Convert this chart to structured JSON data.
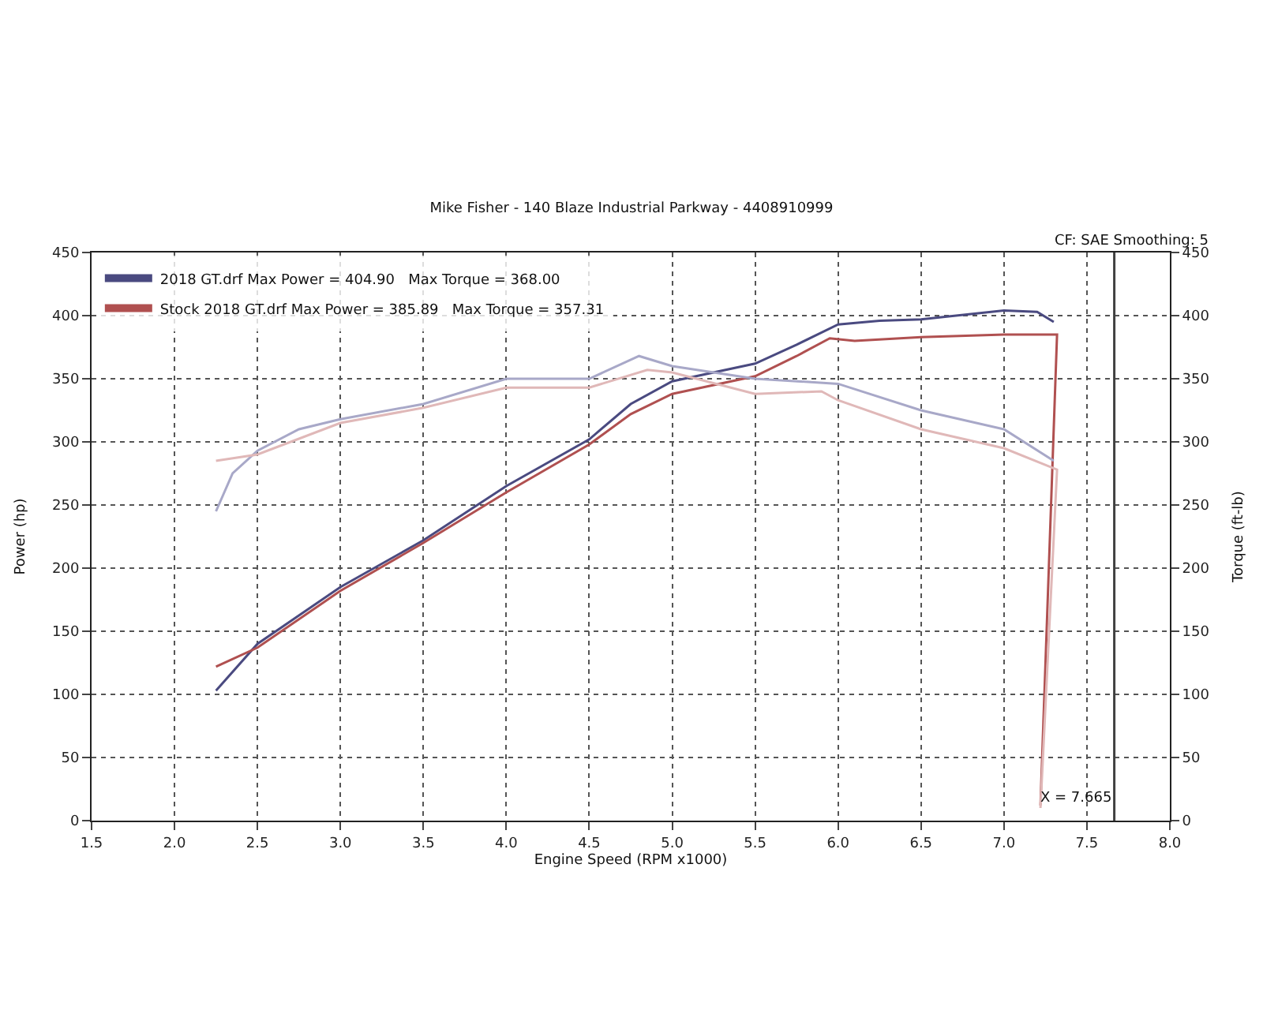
{
  "chart_data": {
    "type": "line",
    "title": "Mike Fisher - 140 Blaze Industrial Parkway - 4408910999",
    "annotations": [
      "CF: SAE Smoothing: 5"
    ],
    "xlabel": "Engine Speed (RPM x1000)",
    "ylabel": "Power (hp)",
    "y2label": "Torque (ft-lb)",
    "xlim": [
      1.5,
      8.0
    ],
    "xticks": [
      1.5,
      {
        "value": 2,
        "label": "2.0"
      },
      2.5,
      {
        "value": 3,
        "label": "3.0"
      },
      3.5,
      {
        "value": 4,
        "label": "4.0"
      },
      4.5,
      {
        "value": 5,
        "label": "5.0"
      },
      5.5,
      {
        "value": 6,
        "label": "6.0"
      },
      6.5,
      {
        "value": 7,
        "label": "7.0"
      },
      7.5,
      {
        "value": 8,
        "label": "8.0"
      }
    ],
    "ylim": [
      0,
      450
    ],
    "yticks": [
      0,
      50,
      100,
      150,
      200,
      250,
      300,
      350,
      400,
      450
    ],
    "y2lim": [
      0,
      450
    ],
    "y2ticks": [
      0,
      50,
      100,
      150,
      200,
      250,
      300,
      350,
      400,
      450
    ],
    "grid": true,
    "legend": "top left",
    "line_style": "solid",
    "marker": "none",
    "ref_lines": [
      {
        "axis": "x",
        "value": 7.665,
        "label": "X = 7.665",
        "color": "#404040"
      }
    ],
    "series": [
      {
        "name": "2018 GT.drf Max Power = 404.90   Max Torque = 368.00",
        "color": "#4a4a80",
        "x": [
          2.25,
          2.5,
          3.0,
          3.5,
          4.0,
          4.5,
          4.75,
          5.0,
          5.5,
          5.75,
          6.0,
          6.25,
          6.5,
          7.0,
          7.2,
          7.3
        ],
        "values": [
          103,
          140,
          185,
          222,
          265,
          302,
          330,
          348,
          362,
          377,
          393,
          396,
          397,
          404,
          403,
          395
        ]
      },
      {
        "color": "#a8a8c8",
        "axis": "y2",
        "x": [
          2.25,
          2.35,
          2.5,
          2.75,
          3.0,
          3.5,
          4.0,
          4.5,
          4.8,
          5.0,
          5.5,
          6.0,
          6.5,
          7.0,
          7.3
        ],
        "values": [
          245,
          275,
          293,
          310,
          318,
          330,
          350,
          350,
          368,
          360,
          350,
          346,
          325,
          310,
          285
        ]
      },
      {
        "name": "Stock 2018 GT.drf Max Power = 385.89   Max Torque = 357.31",
        "color": "#b05050",
        "x": [
          2.25,
          2.5,
          3.0,
          3.5,
          4.0,
          4.5,
          4.75,
          5.0,
          5.5,
          5.75,
          5.95,
          6.1,
          6.5,
          7.0,
          7.32,
          7.22
        ],
        "values": [
          122,
          137,
          182,
          220,
          260,
          298,
          322,
          338,
          352,
          368,
          382,
          380,
          383,
          385,
          385,
          12
        ]
      },
      {
        "color": "#e0b8b8",
        "axis": "y2",
        "x": [
          2.25,
          2.5,
          3.0,
          3.5,
          4.0,
          4.5,
          4.85,
          5.0,
          5.5,
          5.9,
          6.0,
          6.5,
          7.0,
          7.32,
          7.22
        ],
        "values": [
          285,
          290,
          315,
          327,
          343,
          343,
          357,
          355,
          338,
          340,
          333,
          310,
          295,
          278,
          10
        ]
      }
    ]
  }
}
